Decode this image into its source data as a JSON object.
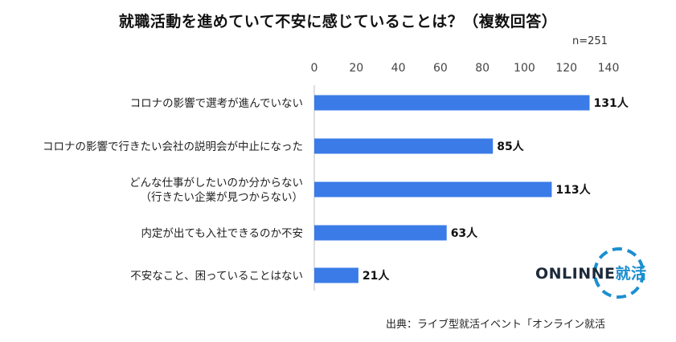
{
  "title": "就職活動を進めていて不安に感じていることは？（複数回答）",
  "sample_size": "n=251",
  "source": "出典：ライブ型就活イベント「オンライン就活",
  "logo": {
    "text": "ONLINNE",
    "accent_text": "就活",
    "color": "#1b8fd0"
  },
  "colors": {
    "bar": "#3a7be8",
    "axis": "#bfbfbf"
  },
  "chart_data": {
    "type": "bar",
    "orientation": "horizontal",
    "title": "就職活動を進めていて不安に感じていることは？（複数回答）",
    "xlim": [
      0,
      140
    ],
    "ticks": [
      0,
      20,
      40,
      60,
      80,
      100,
      120,
      140
    ],
    "tick_labels": [
      "0",
      "20",
      "40",
      "60",
      "80",
      "100",
      "120",
      "140"
    ],
    "categories": [
      [
        "コロナの影響で選考が進んでいない"
      ],
      [
        "コロナの影響で行きたい会社の説明会が中止になった"
      ],
      [
        "どんな仕事がしたいのか分からない",
        "（行きたい企業が見つからない）"
      ],
      [
        "内定が出ても入社できるのか不安"
      ],
      [
        "不安なこと、困っていることはない"
      ]
    ],
    "values": [
      131,
      85,
      113,
      63,
      21
    ],
    "data_labels": [
      "131人",
      "85人",
      "113人",
      "63人",
      "21人"
    ],
    "unit": "人",
    "grid": false,
    "legend": "none"
  }
}
